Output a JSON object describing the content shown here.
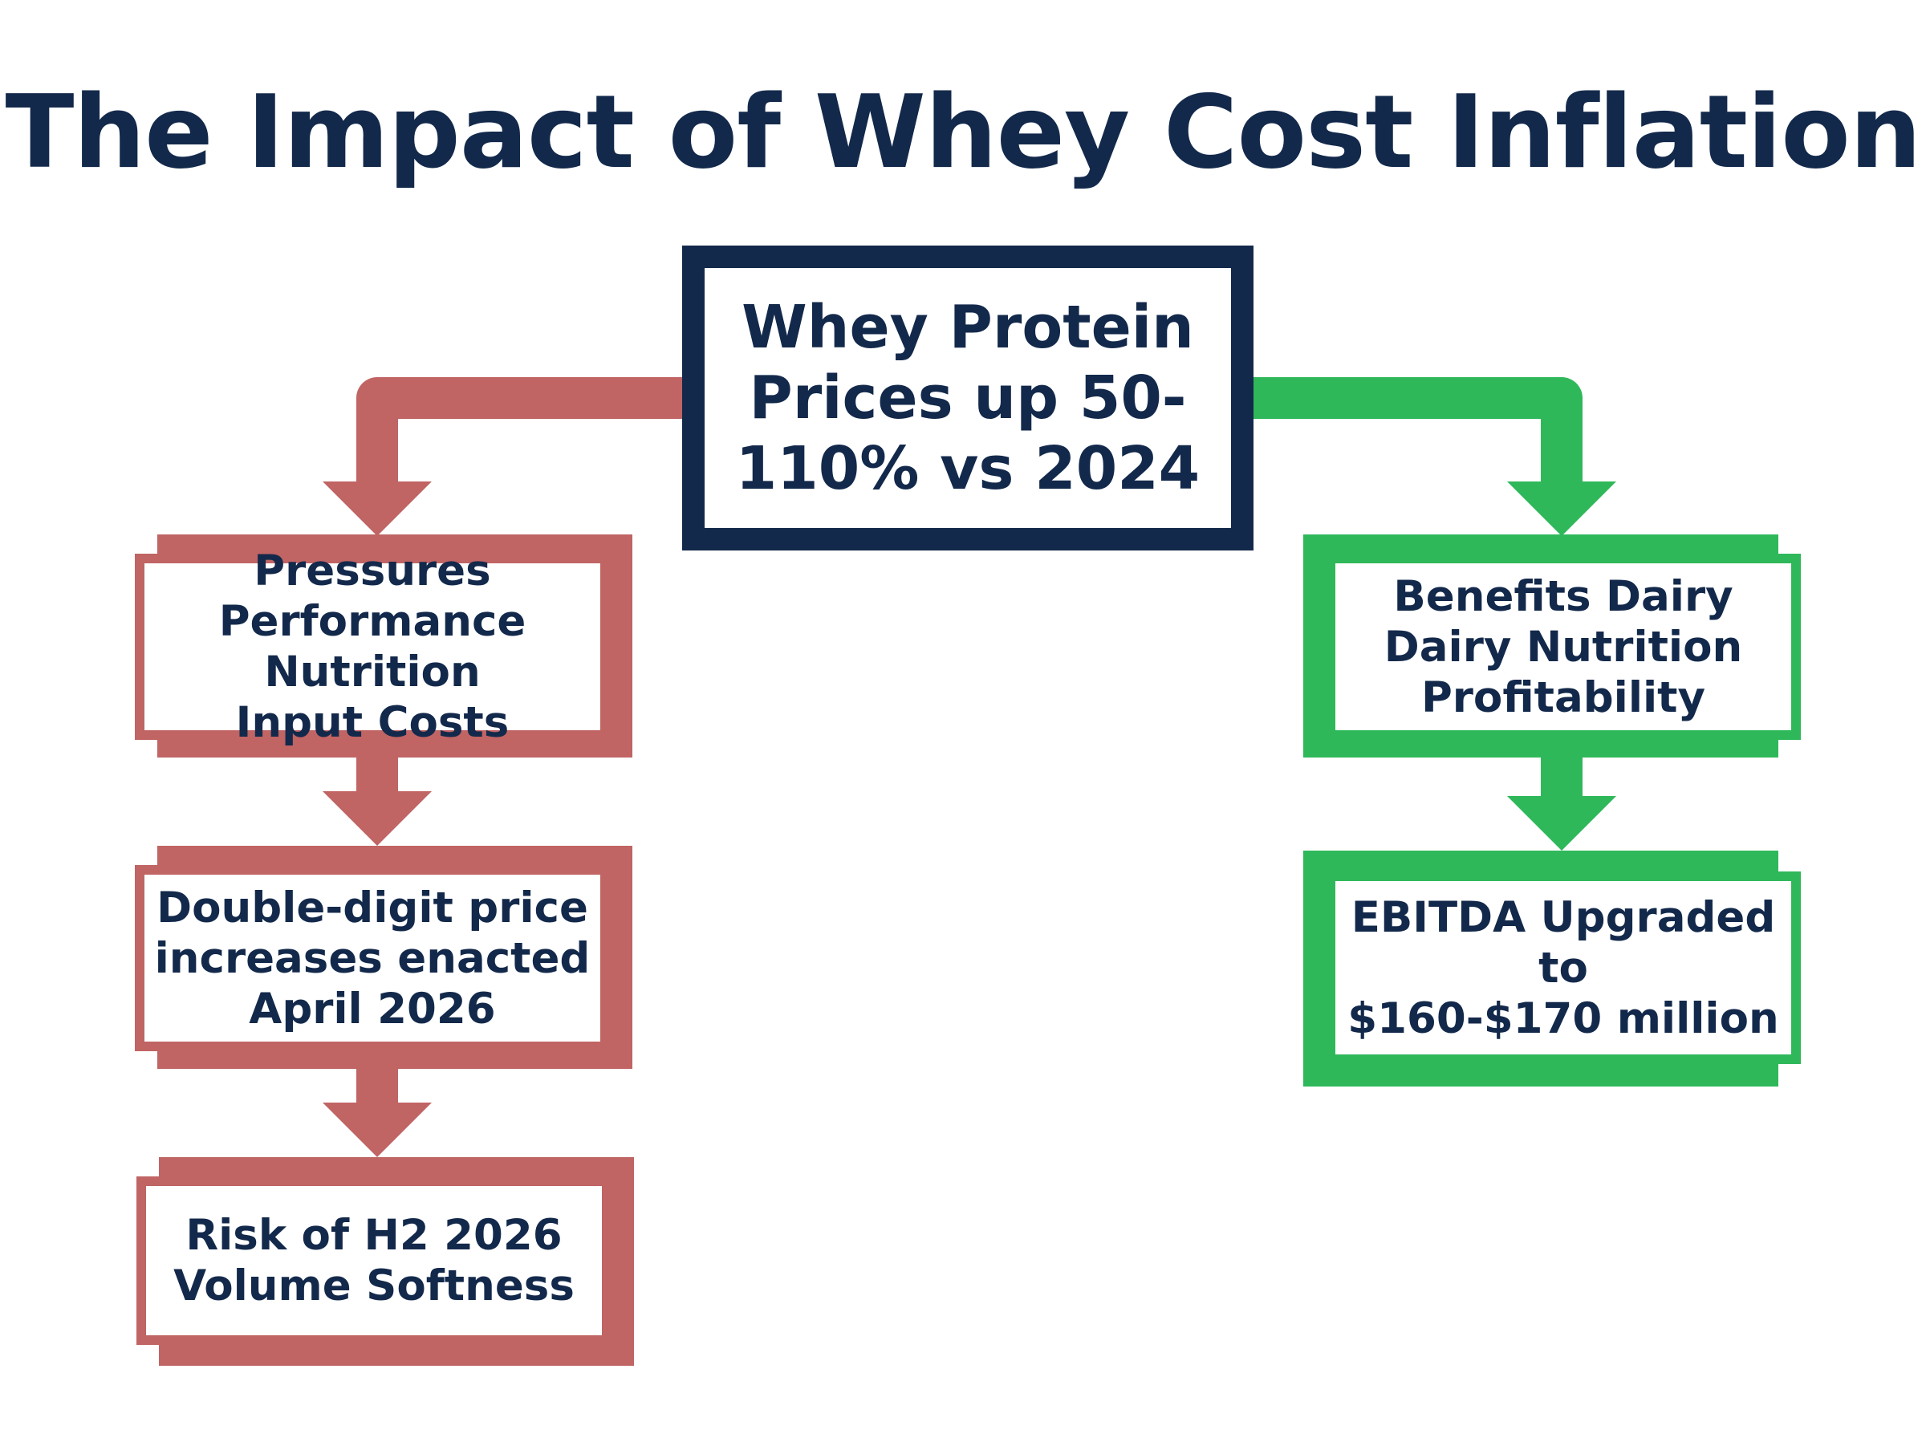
{
  "title": "The Impact of Whey Cost Inflation",
  "colors": {
    "navy": "#13294b",
    "red": "#c06464",
    "green": "#2fb85a",
    "background": "#ffffff"
  },
  "center": {
    "text": "Whey Protein\nPrices up 50-\n110% vs 2024"
  },
  "left_branch": {
    "items": [
      {
        "text": "Pressures\nPerformance Nutrition\nInput Costs"
      },
      {
        "text": "Double-digit price\nincreases enacted\nApril 2026"
      },
      {
        "text": "Risk of H2 2026\nVolume Softness"
      }
    ]
  },
  "right_branch": {
    "items": [
      {
        "text": "Benefits Dairy\nDairy Nutrition\nProfitability"
      },
      {
        "text": "EBITDA Upgraded to\n$160-$170 million"
      }
    ]
  }
}
